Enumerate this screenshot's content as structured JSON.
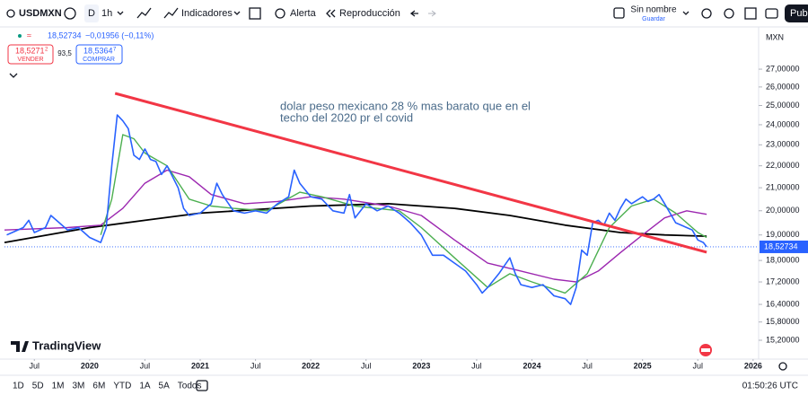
{
  "toolbar": {
    "symbol": "USDMXN",
    "interval_d": "D",
    "interval": "1h",
    "indicators": "Indicadores",
    "alert": "Alerta",
    "replay": "Reproducción",
    "layout_name": "Sin nombre",
    "save": "Guardar",
    "publish": "Publ"
  },
  "legend": {
    "change": "−0,01956 (−0,11%)",
    "sell_price": "18,5271",
    "sell_sup": "2",
    "sell": "VENDER",
    "spread": "93,5",
    "buy_price": "18,5364",
    "buy_sup": "7",
    "buy": "COMPRAR"
  },
  "currency": "MXN",
  "logo": "TradingView",
  "ranges": [
    "1D",
    "5D",
    "1M",
    "3M",
    "6M",
    "YTD",
    "1A",
    "5A",
    "Todos"
  ],
  "clock": "01:50:26 UTC",
  "chart_data": {
    "type": "line",
    "annotation": [
      "dolar peso mexicano 28 % mas barato que en el",
      "techo del 2020 pr el covid"
    ],
    "log_scale": true,
    "grid": false,
    "xlim": [
      2019.23,
      2026.05
    ],
    "xticks": [
      {
        "value": 2019.5,
        "label": "Jul"
      },
      2020,
      {
        "value": 2020.5,
        "label": "Jul"
      },
      2021,
      {
        "value": 2021.5,
        "label": "Jul"
      },
      2022,
      {
        "value": 2022.5,
        "label": "Jul"
      },
      2023,
      {
        "value": 2023.5,
        "label": "Jul"
      },
      2024,
      {
        "value": 2024.5,
        "label": "Jul"
      },
      2025,
      {
        "value": 2025.5,
        "label": "Jul"
      },
      2026
    ],
    "ylim": [
      14.66,
      27.89
    ],
    "yticks": [
      {
        "value": 27,
        "label": "27,00000"
      },
      {
        "value": 26,
        "label": "26,00000"
      },
      {
        "value": 25,
        "label": "25,00000"
      },
      {
        "value": 24,
        "label": "24,00000"
      },
      {
        "value": 23,
        "label": "23,00000"
      },
      {
        "value": 22,
        "label": "22,00000"
      },
      {
        "value": 21,
        "label": "21,00000"
      },
      {
        "value": 20,
        "label": "20,00000"
      },
      {
        "value": 19,
        "label": "19,00000"
      },
      {
        "value": 18,
        "label": "18,00000"
      },
      {
        "value": 17.2,
        "label": "17,20000"
      },
      {
        "value": 16.4,
        "label": "16,40000"
      },
      {
        "value": 15.8,
        "label": "15,80000"
      },
      {
        "value": 15.2,
        "label": "15,20000"
      }
    ],
    "last_price": {
      "value": 18.52734,
      "label": "18,52734"
    },
    "series": [
      {
        "color": "#000000",
        "width": 1.8,
        "x": [
          2019.23,
          2020.0,
          2020.5,
          2021.0,
          2022.0,
          2022.7,
          2023.3,
          2023.8,
          2024.3,
          2024.8,
          2025.2,
          2025.58
        ],
        "values": [
          18.7,
          19.3,
          19.6,
          19.9,
          20.2,
          20.3,
          20.1,
          19.8,
          19.4,
          19.1,
          19.0,
          18.95
        ]
      },
      {
        "color": "#9c27b0",
        "width": 1.4,
        "x": [
          2019.23,
          2019.8,
          2020.1,
          2020.3,
          2020.5,
          2020.7,
          2020.9,
          2021.1,
          2021.4,
          2021.7,
          2022.0,
          2022.3,
          2022.7,
          2023.0,
          2023.3,
          2023.6,
          2023.9,
          2024.2,
          2024.4,
          2024.6,
          2024.8,
          2025.0,
          2025.2,
          2025.4,
          2025.58
        ],
        "values": [
          19.2,
          19.3,
          19.4,
          20.1,
          21.2,
          21.8,
          21.5,
          20.7,
          20.3,
          20.4,
          20.6,
          20.5,
          20.2,
          19.8,
          18.8,
          17.9,
          17.6,
          17.3,
          17.2,
          17.6,
          18.3,
          19.0,
          19.7,
          20.0,
          19.85
        ]
      },
      {
        "color": "#4caf50",
        "width": 1.4,
        "x": [
          2020.1,
          2020.2,
          2020.3,
          2020.4,
          2020.5,
          2020.7,
          2020.9,
          2021.1,
          2021.3,
          2021.6,
          2021.9,
          2022.1,
          2022.4,
          2022.8,
          2023.0,
          2023.3,
          2023.6,
          2023.8,
          2024.0,
          2024.3,
          2024.5,
          2024.7,
          2024.9,
          2025.1,
          2025.3,
          2025.5,
          2025.58
        ],
        "values": [
          19.0,
          20.5,
          23.5,
          23.3,
          22.6,
          22.0,
          20.5,
          20.2,
          20.1,
          20.0,
          20.8,
          20.6,
          20.2,
          20.0,
          19.3,
          18.1,
          17.0,
          17.5,
          17.2,
          16.8,
          17.5,
          19.3,
          20.2,
          20.5,
          19.9,
          19.1,
          18.9
        ]
      },
      {
        "color": "#2962ff",
        "width": 1.6,
        "x": [
          2019.25,
          2019.3,
          2019.4,
          2019.45,
          2019.5,
          2019.6,
          2019.65,
          2019.7,
          2019.8,
          2019.9,
          2020.0,
          2020.1,
          2020.15,
          2020.2,
          2020.25,
          2020.3,
          2020.35,
          2020.4,
          2020.45,
          2020.5,
          2020.55,
          2020.6,
          2020.65,
          2020.7,
          2020.75,
          2020.8,
          2020.85,
          2020.9,
          2021.0,
          2021.1,
          2021.15,
          2021.2,
          2021.3,
          2021.4,
          2021.5,
          2021.6,
          2021.7,
          2021.8,
          2021.85,
          2021.9,
          2022.0,
          2022.1,
          2022.2,
          2022.3,
          2022.35,
          2022.4,
          2022.5,
          2022.6,
          2022.7,
          2022.8,
          2022.9,
          2023.0,
          2023.1,
          2023.2,
          2023.3,
          2023.4,
          2023.5,
          2023.55,
          2023.6,
          2023.7,
          2023.8,
          2023.85,
          2023.9,
          2024.0,
          2024.1,
          2024.2,
          2024.3,
          2024.35,
          2024.4,
          2024.45,
          2024.5,
          2024.55,
          2024.6,
          2024.65,
          2024.7,
          2024.75,
          2024.8,
          2024.85,
          2024.9,
          2025.0,
          2025.05,
          2025.1,
          2025.15,
          2025.2,
          2025.3,
          2025.4,
          2025.45,
          2025.5,
          2025.55,
          2025.58
        ],
        "values": [
          19.0,
          19.1,
          19.3,
          19.6,
          19.1,
          19.3,
          19.8,
          19.6,
          19.2,
          19.3,
          18.9,
          18.7,
          19.3,
          22.0,
          24.5,
          24.2,
          23.8,
          22.5,
          22.3,
          22.8,
          22.3,
          22.2,
          21.6,
          22.0,
          21.5,
          21.0,
          20.1,
          19.8,
          19.9,
          20.3,
          21.2,
          20.7,
          20.0,
          19.9,
          20.0,
          19.9,
          20.3,
          20.6,
          21.8,
          21.2,
          20.6,
          20.5,
          20.0,
          19.9,
          20.7,
          19.7,
          20.3,
          20.0,
          20.2,
          19.9,
          19.5,
          19.0,
          18.2,
          18.2,
          17.9,
          17.6,
          17.1,
          16.8,
          17.0,
          17.5,
          18.1,
          17.5,
          17.1,
          17.0,
          17.1,
          16.7,
          16.6,
          16.4,
          17.0,
          18.4,
          18.2,
          19.5,
          19.6,
          19.4,
          19.9,
          19.6,
          20.1,
          20.5,
          20.3,
          20.6,
          20.4,
          20.5,
          20.7,
          20.3,
          19.5,
          19.3,
          19.2,
          18.8,
          18.7,
          18.53
        ]
      },
      {
        "color": "#f23645",
        "width": 3,
        "x": [
          2020.23,
          2025.58
        ],
        "values": [
          25.65,
          18.32
        ]
      }
    ]
  }
}
